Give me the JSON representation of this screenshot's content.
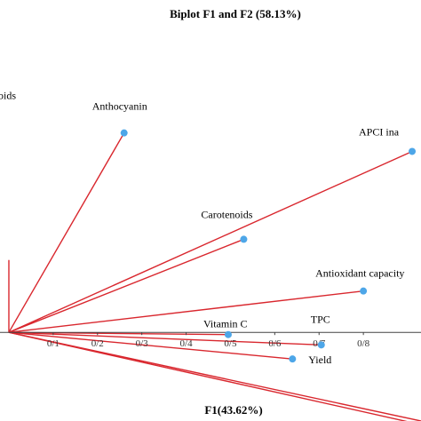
{
  "chart_data": {
    "type": "scatter",
    "title": "Biplot F1 and F2 (58.13%)",
    "xlabel": "F1(43.62%)",
    "ylabel": "",
    "xlim": [
      -0.02,
      0.93
    ],
    "ylim": [
      -0.12,
      0.45
    ],
    "x_ticks": [
      "0/1",
      "0/2",
      "0/3",
      "0/4",
      "0/5",
      "0/6",
      "0/7",
      "0/8"
    ],
    "x_tick_values": [
      0.1,
      0.2,
      0.3,
      0.4,
      0.5,
      0.6,
      0.7,
      0.8
    ],
    "origin": [
      0.0,
      0.0
    ],
    "vector_color": "#d9272e",
    "marker_color": "#4da6e8",
    "points": [
      {
        "label": "Anthocyanin",
        "x": 0.26,
        "y": 0.27,
        "marker": true
      },
      {
        "label": "APCI ina",
        "x": 0.91,
        "y": 0.245,
        "marker": true
      },
      {
        "label": "Carotenoids",
        "x": 0.53,
        "y": 0.126,
        "marker": true
      },
      {
        "label": "Antioxidant capacity",
        "x": 0.8,
        "y": 0.056,
        "marker": true
      },
      {
        "label": "Vitamin C",
        "x": 0.495,
        "y": -0.003,
        "marker": true
      },
      {
        "label": "TPC",
        "x": 0.705,
        "y": -0.017,
        "marker": true
      },
      {
        "label": "Yield",
        "x": 0.64,
        "y": -0.036,
        "marker": true
      },
      {
        "label": "oids",
        "x": 0.0,
        "y": 0.098,
        "marker": false
      },
      {
        "label": "",
        "x": 0.93,
        "y": -0.12,
        "marker": false
      },
      {
        "label": "",
        "x": 0.93,
        "y": -0.125,
        "marker": false
      }
    ]
  }
}
